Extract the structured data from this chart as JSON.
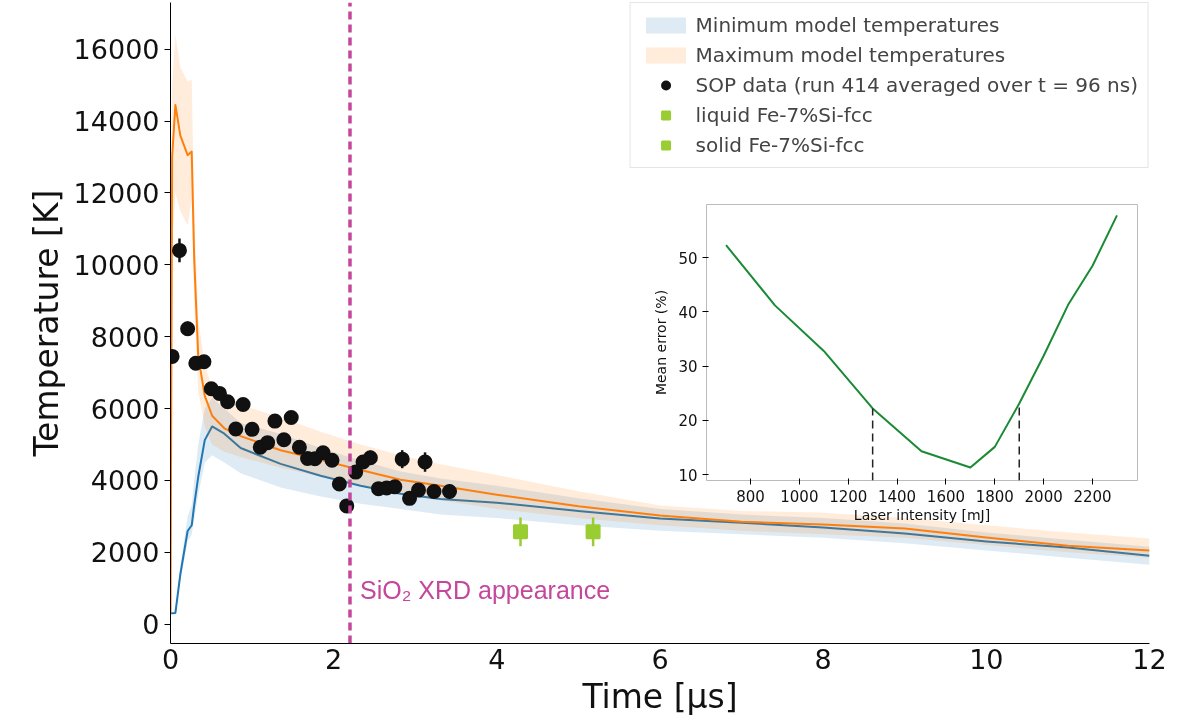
{
  "chart_data": [
    {
      "type": "line",
      "xlabel": "Time [μs]",
      "ylabel": "Temperature [K]",
      "xlim": [
        0,
        12
      ],
      "ylim": [
        -540,
        17300
      ],
      "xticks": [
        0,
        2,
        4,
        6,
        8,
        10,
        12
      ],
      "yticks": [
        0,
        2000,
        4000,
        6000,
        8000,
        10000,
        12000,
        14000,
        16000
      ],
      "grid": false,
      "legend": "top right",
      "line_style": "solid",
      "series": [
        {
          "name": "Minimum model temperatures",
          "color": "#1f77b4",
          "x": [
            0,
            0.02,
            0.06,
            0.12,
            0.21,
            0.26,
            0.29,
            0.34,
            0.42,
            0.51,
            0.66,
            0.86,
            1.35,
            1.84,
            2.33,
            2.82,
            3.31,
            4,
            5,
            6,
            7,
            8,
            9,
            10,
            11,
            12
          ],
          "values": [
            300,
            300,
            310,
            1380,
            2590,
            2750,
            3300,
            4100,
            5120,
            5500,
            5300,
            4900,
            4460,
            4130,
            3850,
            3630,
            3480,
            3380,
            3150,
            2940,
            2820,
            2690,
            2520,
            2300,
            2130,
            1900
          ],
          "upper": [
            300,
            300,
            320,
            1600,
            3000,
            3300,
            4000,
            5000,
            6000,
            6300,
            6000,
            5600,
            5290,
            4900,
            4550,
            4250,
            4050,
            3850,
            3500,
            3200,
            3050,
            2950,
            2800,
            2550,
            2350,
            2150
          ],
          "lower": [
            300,
            300,
            300,
            1200,
            2300,
            2500,
            2900,
            3600,
            4500,
            4700,
            4500,
            4200,
            3800,
            3550,
            3350,
            3200,
            3050,
            2950,
            2750,
            2600,
            2500,
            2400,
            2250,
            2050,
            1850,
            1650
          ]
        },
        {
          "name": "Maximum model temperatures",
          "color": "#ff7f0e",
          "x": [
            0,
            0.02,
            0.06,
            0.12,
            0.21,
            0.26,
            0.29,
            0.34,
            0.42,
            0.51,
            0.66,
            0.86,
            1.35,
            1.84,
            2.33,
            2.82,
            3.31,
            4,
            5,
            6,
            7,
            8,
            9,
            10,
            11,
            12
          ],
          "values": [
            300,
            13000,
            14450,
            13600,
            13050,
            13150,
            10200,
            7450,
            6350,
            5800,
            5450,
            5230,
            4840,
            4570,
            4290,
            4020,
            3850,
            3600,
            3280,
            3020,
            2850,
            2770,
            2660,
            2410,
            2180,
            2050
          ],
          "upper": [
            300,
            15000,
            16400,
            15500,
            15100,
            15150,
            11500,
            8500,
            7200,
            6600,
            6300,
            6100,
            5750,
            5350,
            5000,
            4700,
            4450,
            4150,
            3700,
            3300,
            3150,
            3100,
            2950,
            2750,
            2550,
            2380
          ],
          "lower": [
            300,
            10500,
            12000,
            11500,
            11100,
            11800,
            9000,
            6500,
            5500,
            5000,
            4800,
            4650,
            4350,
            4100,
            3850,
            3600,
            3450,
            3200,
            2950,
            2750,
            2600,
            2500,
            2400,
            2200,
            2000,
            1850
          ]
        },
        {
          "name": "SOP data (run 414 averaged over t = 96 ns)",
          "type": "scatter",
          "marker": "circle",
          "color": "#111111",
          "x": [
            0.02,
            0.11,
            0.21,
            0.31,
            0.41,
            0.5,
            0.6,
            0.7,
            0.89,
            0.8,
            1.0,
            1.1,
            1.19,
            1.28,
            1.39,
            1.48,
            1.58,
            1.68,
            1.77,
            1.87,
            1.98,
            2.07,
            2.16,
            2.27,
            2.36,
            2.45,
            2.55,
            2.65,
            2.75,
            2.84,
            2.93,
            3.04,
            3.12,
            3.23,
            3.42
          ],
          "values": [
            7450,
            10400,
            8220,
            7260,
            7300,
            6550,
            6420,
            6190,
            6110,
            5430,
            5420,
            4920,
            5050,
            5650,
            5130,
            5750,
            4920,
            4610,
            4600,
            4770,
            4560,
            3900,
            3290,
            4230,
            4510,
            4630,
            3770,
            3790,
            3820,
            4590,
            3500,
            3730,
            4510,
            3690,
            3690
          ],
          "errors": [
            null,
            330,
            200,
            null,
            null,
            null,
            null,
            null,
            null,
            null,
            null,
            null,
            null,
            null,
            null,
            180,
            null,
            null,
            null,
            null,
            null,
            null,
            null,
            null,
            null,
            200,
            null,
            null,
            null,
            250,
            null,
            null,
            270,
            150,
            200
          ]
        },
        {
          "name": "liquid Fe-7%Si-fcc",
          "type": "scatter",
          "marker": "square",
          "color": "#9acd32",
          "x": [
            4.29
          ],
          "values": [
            2570
          ],
          "errors": [
            400
          ]
        },
        {
          "name": "solid Fe-7%Si-fcc",
          "type": "scatter",
          "marker": "square",
          "color": "#9acd32",
          "x": [
            5.18
          ],
          "values": [
            2570
          ],
          "errors": [
            400
          ]
        }
      ],
      "ref_lines": [
        {
          "axis": "x",
          "value": 2.2,
          "label": "SiO₂ XRD appearance",
          "color": "#c5479b",
          "line_style": "dashed"
        }
      ]
    },
    {
      "type": "line",
      "xlabel": "Laser intensity [mJ]",
      "ylabel": "Mean error (%)",
      "xlim": [
        620,
        2384
      ],
      "ylim": [
        8.9,
        59.8
      ],
      "xticks": [
        800,
        1000,
        1200,
        1400,
        1600,
        1800,
        2000,
        2200
      ],
      "yticks": [
        10,
        20,
        30,
        40,
        50
      ],
      "grid": false,
      "line_style": "solid",
      "series": [
        {
          "color": "#1a8a34",
          "x": [
            700,
            900,
            1100,
            1300,
            1500,
            1700,
            1800,
            1900,
            2000,
            2100,
            2200,
            2300
          ],
          "values": [
            52.3,
            41.2,
            32.8,
            22.2,
            14.3,
            11.3,
            15.1,
            23.1,
            31.9,
            41.3,
            48.5,
            57.8
          ]
        }
      ],
      "ref_lines": [
        {
          "axis": "x",
          "value": 1300,
          "color": "#222222",
          "line_style": "dashed"
        },
        {
          "axis": "x",
          "value": 1900,
          "color": "#222222",
          "line_style": "dashed"
        }
      ]
    }
  ]
}
